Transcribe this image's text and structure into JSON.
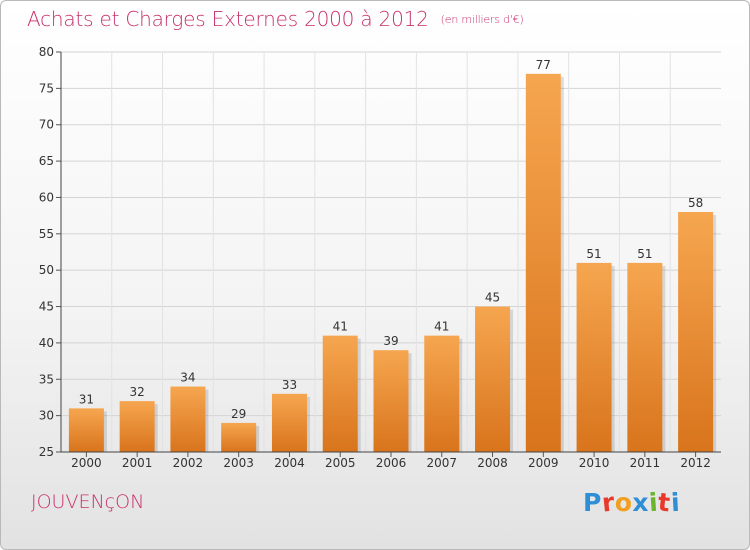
{
  "header": {
    "title": "Achats et Charges Externes 2000 à 2012",
    "subtitle": "(en milliers d'€)"
  },
  "footer": {
    "town": "JOUVENçON",
    "logo_letters": [
      "P",
      "r",
      "o",
      "x",
      "i",
      "t",
      "i"
    ],
    "logo_colors": [
      "#2e8fd6",
      "#e8392b",
      "#f0a020",
      "#2e8fd6",
      "#6ab42e",
      "#e8392b",
      "#2e8fd6"
    ]
  },
  "chart_data": {
    "type": "bar",
    "title": "Achats et Charges Externes 2000 à 2012",
    "subtitle": "(en milliers d'€)",
    "categories": [
      "2000",
      "2001",
      "2002",
      "2003",
      "2004",
      "2005",
      "2006",
      "2007",
      "2008",
      "2009",
      "2010",
      "2011",
      "2012"
    ],
    "values": [
      31,
      32,
      34,
      29,
      33,
      41,
      39,
      41,
      45,
      77,
      51,
      51,
      58
    ],
    "data_labels": [
      "31",
      "32",
      "34",
      "29",
      "33",
      "41",
      "39",
      "41",
      "45",
      "77",
      "51",
      "51",
      "58"
    ],
    "ylim": [
      25,
      80
    ],
    "yticks": [
      25,
      30,
      35,
      40,
      45,
      50,
      55,
      60,
      65,
      70,
      75,
      80
    ],
    "grid": true,
    "colors": {
      "bar_top": "#f6a650",
      "bar_bottom": "#d8741c",
      "text": "#c8306a"
    }
  }
}
